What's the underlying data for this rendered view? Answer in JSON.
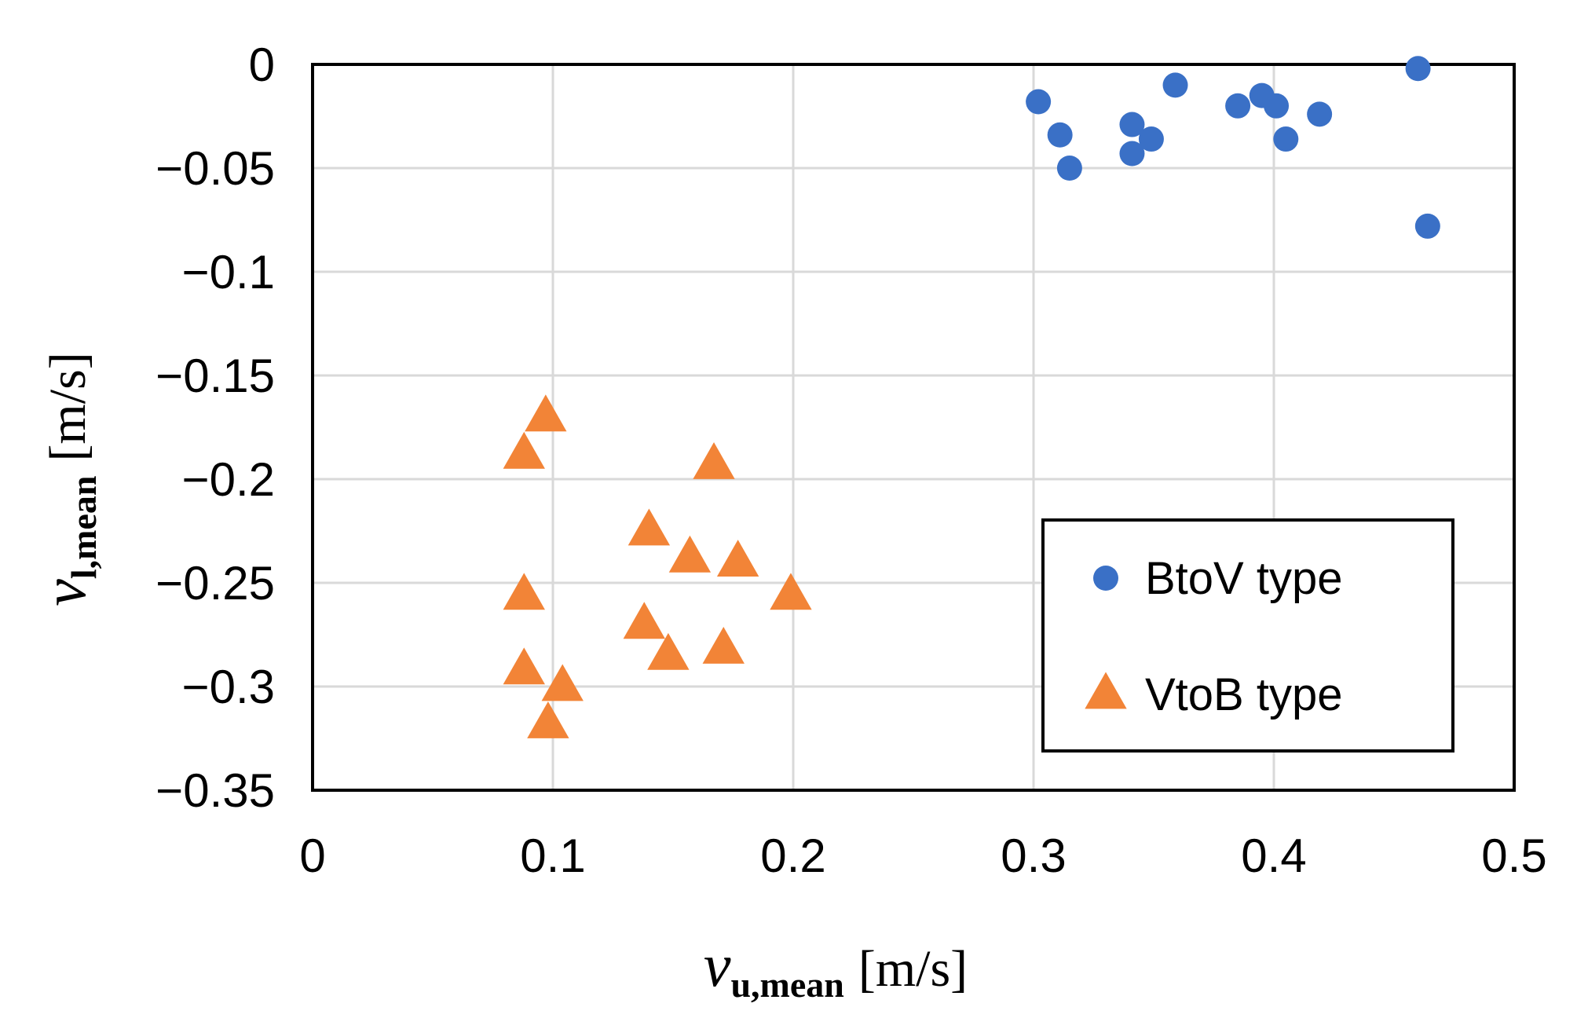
{
  "chart_data": {
    "type": "scatter",
    "title": "",
    "xlabel": {
      "symbol": "v",
      "subscript": "u,mean",
      "unit": "[m/s]"
    },
    "ylabel": {
      "symbol": "v",
      "subscript": "l,mean",
      "unit": "[m/s]"
    },
    "xlim": [
      0,
      0.5
    ],
    "ylim": [
      -0.35,
      0
    ],
    "x_ticks": [
      0,
      0.1,
      0.2,
      0.3,
      0.4,
      0.5
    ],
    "x_tick_labels": [
      "0",
      "0.1",
      "0.2",
      "0.3",
      "0.4",
      "0.5"
    ],
    "y_ticks": [
      0,
      -0.05,
      -0.1,
      -0.15,
      -0.2,
      -0.25,
      -0.3,
      -0.35
    ],
    "y_tick_labels": [
      "0",
      "−0.05",
      "−0.1",
      "−0.15",
      "−0.2",
      "−0.25",
      "−0.3",
      "−0.35"
    ],
    "grid": true,
    "legend_position": "bottom-right",
    "series": [
      {
        "name": "BtoV type",
        "marker": "circle",
        "color": "#3a70c6",
        "points": [
          [
            0.302,
            -0.018
          ],
          [
            0.311,
            -0.034
          ],
          [
            0.315,
            -0.05
          ],
          [
            0.341,
            -0.029
          ],
          [
            0.341,
            -0.043
          ],
          [
            0.349,
            -0.036
          ],
          [
            0.359,
            -0.01
          ],
          [
            0.385,
            -0.02
          ],
          [
            0.395,
            -0.015
          ],
          [
            0.401,
            -0.02
          ],
          [
            0.405,
            -0.036
          ],
          [
            0.419,
            -0.024
          ],
          [
            0.46,
            -0.002
          ],
          [
            0.464,
            -0.078
          ]
        ]
      },
      {
        "name": "VtoB type",
        "marker": "triangle",
        "color": "#f28437",
        "points": [
          [
            0.097,
            -0.17
          ],
          [
            0.088,
            -0.188
          ],
          [
            0.088,
            -0.256
          ],
          [
            0.088,
            -0.292
          ],
          [
            0.104,
            -0.3
          ],
          [
            0.098,
            -0.318
          ],
          [
            0.14,
            -0.225
          ],
          [
            0.138,
            -0.27
          ],
          [
            0.148,
            -0.285
          ],
          [
            0.157,
            -0.238
          ],
          [
            0.167,
            -0.193
          ],
          [
            0.171,
            -0.282
          ],
          [
            0.177,
            -0.24
          ],
          [
            0.199,
            -0.256
          ]
        ]
      }
    ]
  }
}
